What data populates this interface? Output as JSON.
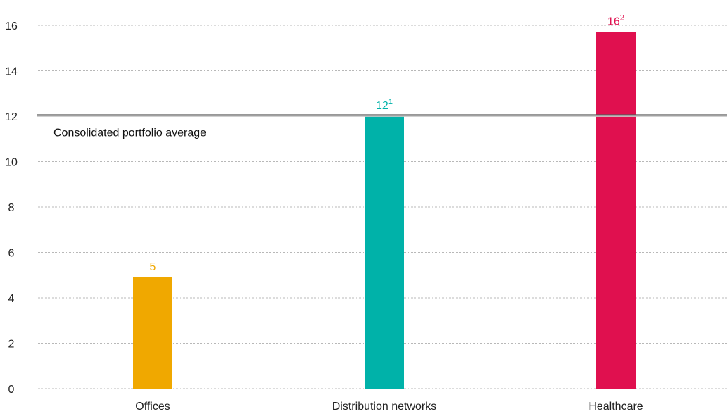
{
  "chart_data": {
    "type": "bar",
    "title": "",
    "xlabel": "",
    "ylabel": "",
    "ylim": [
      0,
      17
    ],
    "yticks": [
      0,
      2,
      4,
      6,
      8,
      10,
      12,
      14,
      16
    ],
    "grid": true,
    "categories": [
      "Offices",
      "Distribution networks",
      "Healthcare"
    ],
    "values": [
      4.9,
      12,
      15.7
    ],
    "data_labels": [
      {
        "text": "5",
        "footnote": ""
      },
      {
        "text": "12",
        "footnote": "1"
      },
      {
        "text": "16",
        "footnote": "2"
      }
    ],
    "colors": [
      "#f0a800",
      "#00b2a9",
      "#e0104f"
    ],
    "label_colors": [
      "#f0a800",
      "#00b2a9",
      "#e0104f"
    ],
    "reference_line": {
      "value": 12.05,
      "label": "Consolidated portfolio average",
      "color": "#5a5a5a"
    }
  }
}
